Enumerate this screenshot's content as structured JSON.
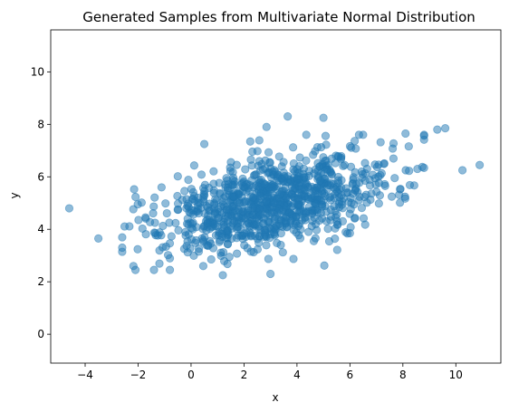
{
  "chart_data": {
    "type": "scatter",
    "title": "Generated Samples from Multivariate Normal Distribution",
    "xlabel": "x",
    "ylabel": "y",
    "xlim": [
      -5.3,
      11.7
    ],
    "ylim": [
      -1.1,
      11.6
    ],
    "xticks": [
      -4,
      -2,
      0,
      2,
      4,
      6,
      8,
      10
    ],
    "yticks": [
      0,
      2,
      4,
      6,
      8,
      10
    ],
    "grid": false,
    "legend": "none",
    "marker_color": "#1f77b4",
    "marker_alpha": 0.5,
    "n_points": 1000,
    "mean": [
      3,
      5
    ],
    "std": [
      2.2,
      0.95
    ],
    "correlation": 0.45,
    "outliers": [
      [
        -4.6,
        4.8
      ],
      [
        -3.5,
        3.65
      ],
      [
        -2.6,
        3.3
      ],
      [
        -2.1,
        2.45
      ],
      [
        -1.4,
        2.45
      ],
      [
        -0.8,
        2.45
      ],
      [
        1.2,
        2.25
      ],
      [
        3.0,
        2.3
      ],
      [
        2.85,
        7.9
      ],
      [
        3.65,
        8.3
      ],
      [
        5.0,
        8.25
      ],
      [
        8.1,
        7.65
      ],
      [
        9.3,
        7.8
      ],
      [
        9.6,
        7.85
      ],
      [
        10.25,
        6.25
      ],
      [
        10.9,
        6.45
      ],
      [
        0.5,
        7.25
      ],
      [
        8.55,
        6.3
      ]
    ]
  }
}
